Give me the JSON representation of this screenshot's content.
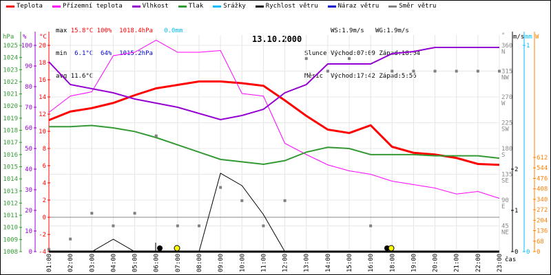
{
  "legend": [
    {
      "label": "Teplota",
      "color": "#ff0000"
    },
    {
      "label": "Přízemní teplota",
      "color": "#ff00ff"
    },
    {
      "label": "Vlhkost",
      "color": "#9400d3"
    },
    {
      "label": "Tlak",
      "color": "#339933"
    },
    {
      "label": "Srážky",
      "color": "#00bfff"
    },
    {
      "label": "Rychlost větru",
      "color": "#000000"
    },
    {
      "label": "Náraz větru",
      "color": "#0000cc"
    },
    {
      "label": "Směr větru",
      "color": "#808080"
    }
  ],
  "stats": {
    "max_label": "max",
    "max_temp": "15.8°C",
    "max_hum": "100%",
    "max_press": "1018.4hPa",
    "max_rain": "0.0mm",
    "min_label": "min",
    "min_temp": "6.1°C",
    "min_hum": "64%",
    "min_press": "1015.2hPa",
    "avg_label": "avg",
    "avg_temp": "11.6°C",
    "ws": "WS:1.9m/s",
    "wg": "WG:1.9m/s",
    "sun_label": "Slunce",
    "sunrise": "Východ:07:09",
    "sunset": "Západ:18:04",
    "moon_label": "Měsíc",
    "moonrise": "Východ:17:42",
    "moonset": "Západ:5:56"
  },
  "chart_data": {
    "type": "line",
    "title": "13.10.2000",
    "xlabel": "čas",
    "x": [
      "01:00",
      "02:00",
      "03:00",
      "04:00",
      "05:00",
      "06:00",
      "07:00",
      "08:00",
      "09:00",
      "10:00",
      "11:00",
      "12:00",
      "13:00",
      "14:00",
      "15:00",
      "16:00",
      "18:00",
      "19:00",
      "20:00",
      "21:00",
      "22:00",
      "23:00"
    ],
    "axes": {
      "pressure": {
        "unit": "hPa",
        "range": [
          1008,
          1025
        ],
        "ticks": [
          1008,
          1009,
          1010,
          1011,
          1012,
          1013,
          1014,
          1015,
          1016,
          1017,
          1018,
          1019,
          1020,
          1021,
          1022,
          1023,
          1024,
          1025
        ]
      },
      "humidity": {
        "unit": "%",
        "range": [
          0,
          100
        ],
        "ticks": [
          0,
          10,
          20,
          30,
          40,
          50,
          60,
          70,
          80,
          90,
          100
        ]
      },
      "temperature": {
        "unit": "°C",
        "range": [
          -4,
          20
        ],
        "ticks": [
          -4,
          -2,
          0,
          2,
          4,
          6,
          8,
          10,
          12,
          14,
          16,
          18,
          20
        ]
      },
      "direction": {
        "unit": "°",
        "range": [
          0,
          360
        ],
        "ticks": [
          {
            "v": 45,
            "l": "NE"
          },
          {
            "v": 90,
            "l": "E"
          },
          {
            "v": 135,
            "l": "SE"
          },
          {
            "v": 180,
            "l": "S"
          },
          {
            "v": 225,
            "l": "SW"
          },
          {
            "v": 270,
            "l": "W"
          },
          {
            "v": 315,
            "l": "NW"
          },
          {
            "v": 360,
            "l": "N"
          }
        ]
      },
      "wind": {
        "unit": "m/s",
        "range": [
          0,
          5
        ],
        "ticks": [
          0,
          1,
          2
        ]
      },
      "rain": {
        "unit": "mm",
        "range": [
          0,
          1
        ],
        "ticks": [
          0,
          1
        ]
      },
      "solar": {
        "unit": "W",
        "range": [
          0,
          1360
        ],
        "ticks": [
          0,
          68,
          136,
          204,
          272,
          340,
          408,
          476,
          544,
          612
        ]
      }
    },
    "series": [
      {
        "name": "Teplota",
        "axis": "temperature",
        "color": "#ff0000",
        "values": [
          11.3,
          12.3,
          12.7,
          13.3,
          14.2,
          15.0,
          15.4,
          15.8,
          15.8,
          15.6,
          15.3,
          13.6,
          11.8,
          10.2,
          9.8,
          10.7,
          8.2,
          7.5,
          7.3,
          6.9,
          6.2,
          6.1
        ]
      },
      {
        "name": "Přízemní teplota",
        "axis": "temperature",
        "color": "#ff00ff",
        "values": [
          12.2,
          14.1,
          14.6,
          18.8,
          19.2,
          20.6,
          19.2,
          19.2,
          19.4,
          14.4,
          14.1,
          8.6,
          7.3,
          6.1,
          5.4,
          5.0,
          4.2,
          3.8,
          3.4,
          2.7,
          3.0,
          2.2
        ]
      },
      {
        "name": "Vlhkost",
        "axis": "humidity",
        "color": "#9400d3",
        "values": [
          92,
          81,
          79,
          77,
          74,
          72,
          70,
          67,
          64,
          66,
          69,
          77,
          81,
          91,
          91,
          91,
          96,
          97,
          99,
          99,
          99,
          99
        ]
      },
      {
        "name": "Tlak",
        "axis": "pressure",
        "color": "#339933",
        "values": [
          1018.3,
          1018.3,
          1018.4,
          1018.2,
          1017.9,
          1017.4,
          1016.8,
          1016.2,
          1015.6,
          1015.4,
          1015.2,
          1015.5,
          1016.2,
          1016.6,
          1016.5,
          1016.0,
          1016.0,
          1016.0,
          1015.9,
          1015.9,
          1015.9,
          1015.7
        ]
      },
      {
        "name": "Srážky",
        "axis": "rain",
        "color": "#00bfff",
        "values": [
          0,
          0,
          0,
          0,
          0,
          0,
          0,
          0,
          0,
          0,
          0,
          0,
          0,
          0,
          0,
          0,
          0,
          0,
          0,
          0,
          0,
          0
        ]
      },
      {
        "name": "Rychlost větru",
        "axis": "wind",
        "color": "#000000",
        "values": [
          0,
          0,
          0,
          0.3,
          0,
          0,
          0,
          0,
          1.9,
          1.6,
          0.9,
          0,
          0,
          0,
          0,
          0,
          0,
          0,
          0,
          0,
          0,
          0
        ]
      },
      {
        "name": "Směr větru",
        "axis": "direction",
        "color": "#808080",
        "type": "scatter",
        "values": [
          4,
          22,
          67,
          45,
          67,
          202,
          45,
          45,
          112,
          89,
          45,
          89,
          337,
          315,
          337,
          45,
          315,
          315,
          315,
          315,
          315,
          315
        ]
      }
    ]
  }
}
